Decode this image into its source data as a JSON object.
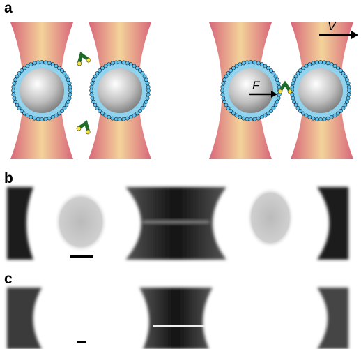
{
  "panels": [
    {
      "label": "a"
    },
    {
      "label": "b"
    },
    {
      "label": "c"
    }
  ],
  "annotations": {
    "force": "F",
    "velocity": "V"
  }
}
